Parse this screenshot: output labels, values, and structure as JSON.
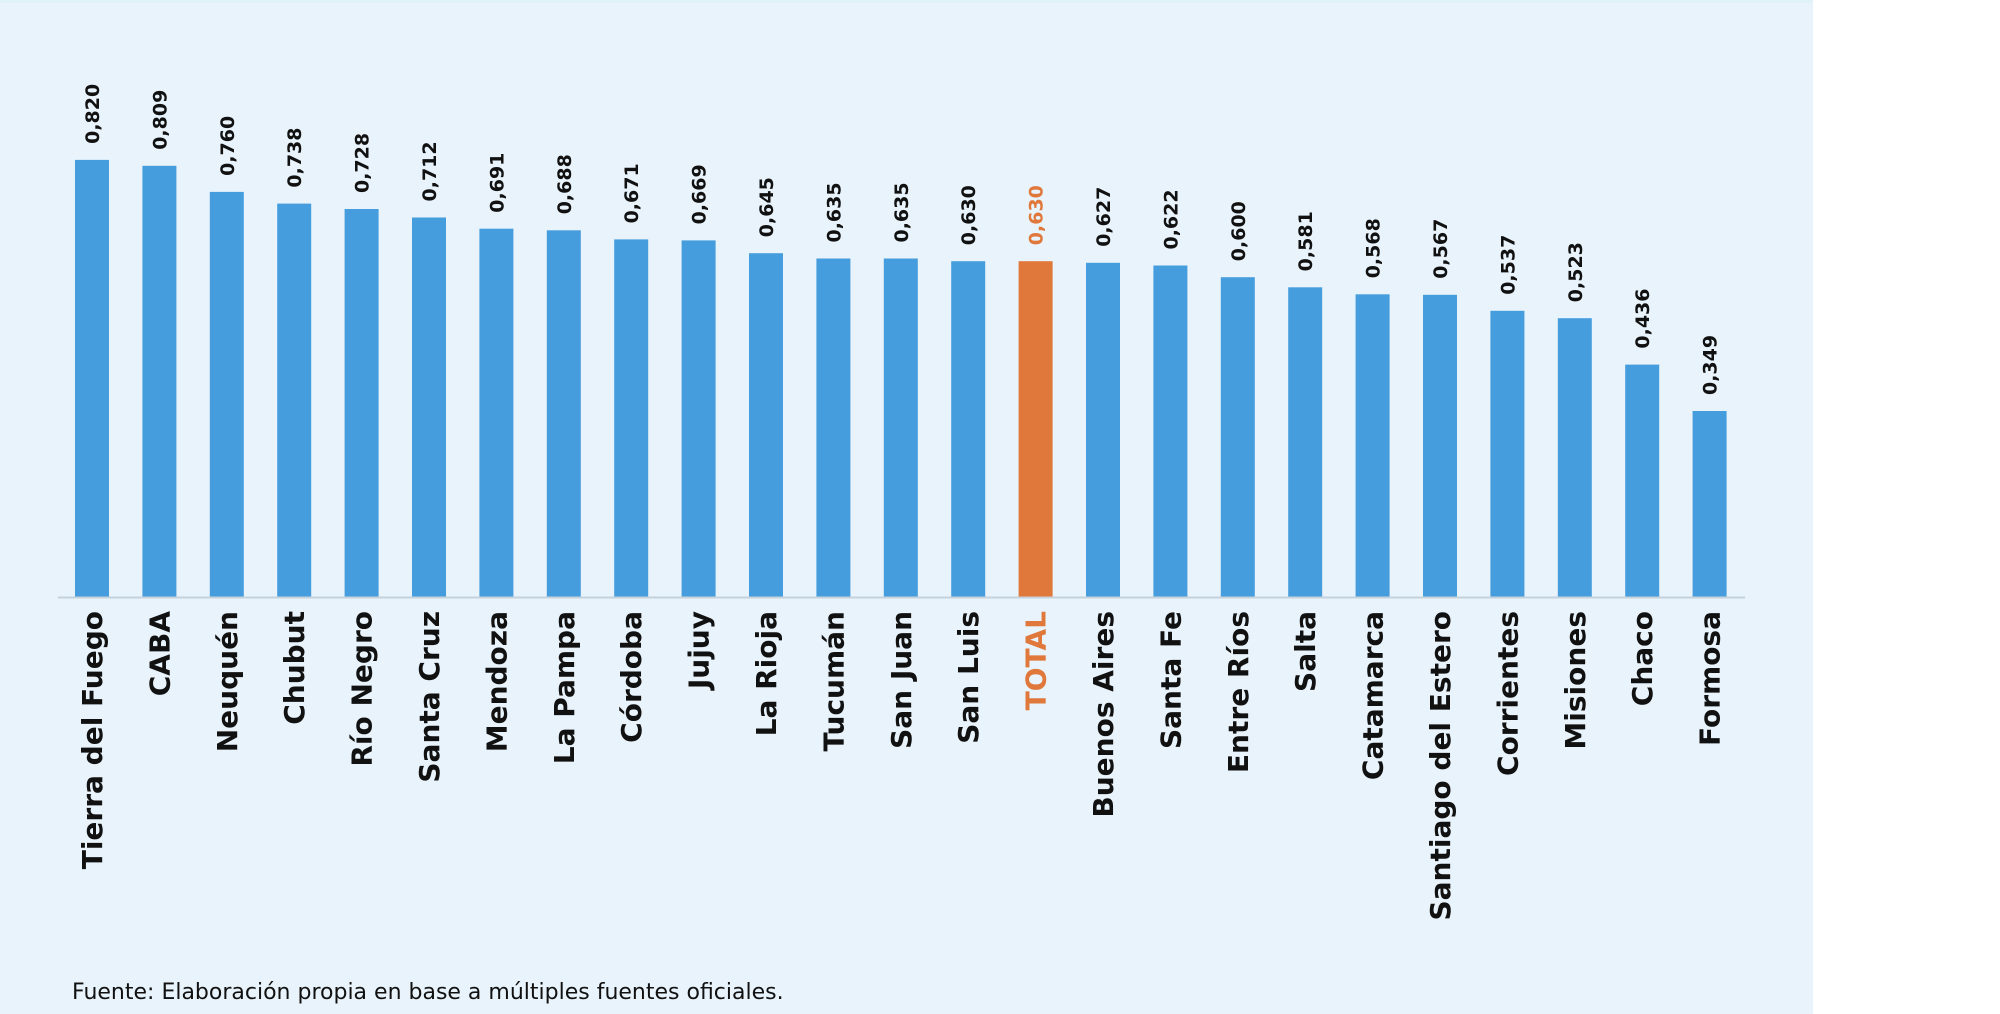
{
  "colors": {
    "panel_background": "#e8f3fb",
    "bar": "#469ddd",
    "highlight_bar": "#e0783b",
    "text": "#111111",
    "axis": "#c5d2dc"
  },
  "chart_data": {
    "type": "bar",
    "orientation": "vertical",
    "categories": [
      "Tierra del Fuego",
      "CABA",
      "Neuquén",
      "Chubut",
      "Río Negro",
      "Santa Cruz",
      "Mendoza",
      "La Pampa",
      "Córdoba",
      "Jujuy",
      "La Rioja",
      "Tucumán",
      "San Juan",
      "San Luis",
      "TOTAL",
      "Buenos Aires",
      "Santa Fe",
      "Entre Ríos",
      "Salta",
      "Catamarca",
      "Santiago del Estero",
      "Corrientes",
      "Misiones",
      "Chaco",
      "Formosa"
    ],
    "values": [
      0.82,
      0.809,
      0.76,
      0.738,
      0.728,
      0.712,
      0.691,
      0.688,
      0.671,
      0.669,
      0.645,
      0.635,
      0.635,
      0.63,
      0.63,
      0.627,
      0.622,
      0.6,
      0.581,
      0.568,
      0.567,
      0.537,
      0.523,
      0.436,
      0.349
    ],
    "value_labels": [
      "0,820",
      "0,809",
      "0,760",
      "0,738",
      "0,728",
      "0,712",
      "0,691",
      "0,688",
      "0,671",
      "0,669",
      "0,645",
      "0,635",
      "0,635",
      "0,630",
      "0,630",
      "0,627",
      "0,622",
      "0,600",
      "0,581",
      "0,568",
      "0,567",
      "0,537",
      "0,523",
      "0,436",
      "0,349"
    ],
    "highlight": [
      "TOTAL"
    ],
    "ylim": [
      0,
      1
    ],
    "grid": false,
    "legend": false
  },
  "footer": {
    "source": "Fuente: Elaboración propia en base a múltiples fuentes oficiales."
  }
}
